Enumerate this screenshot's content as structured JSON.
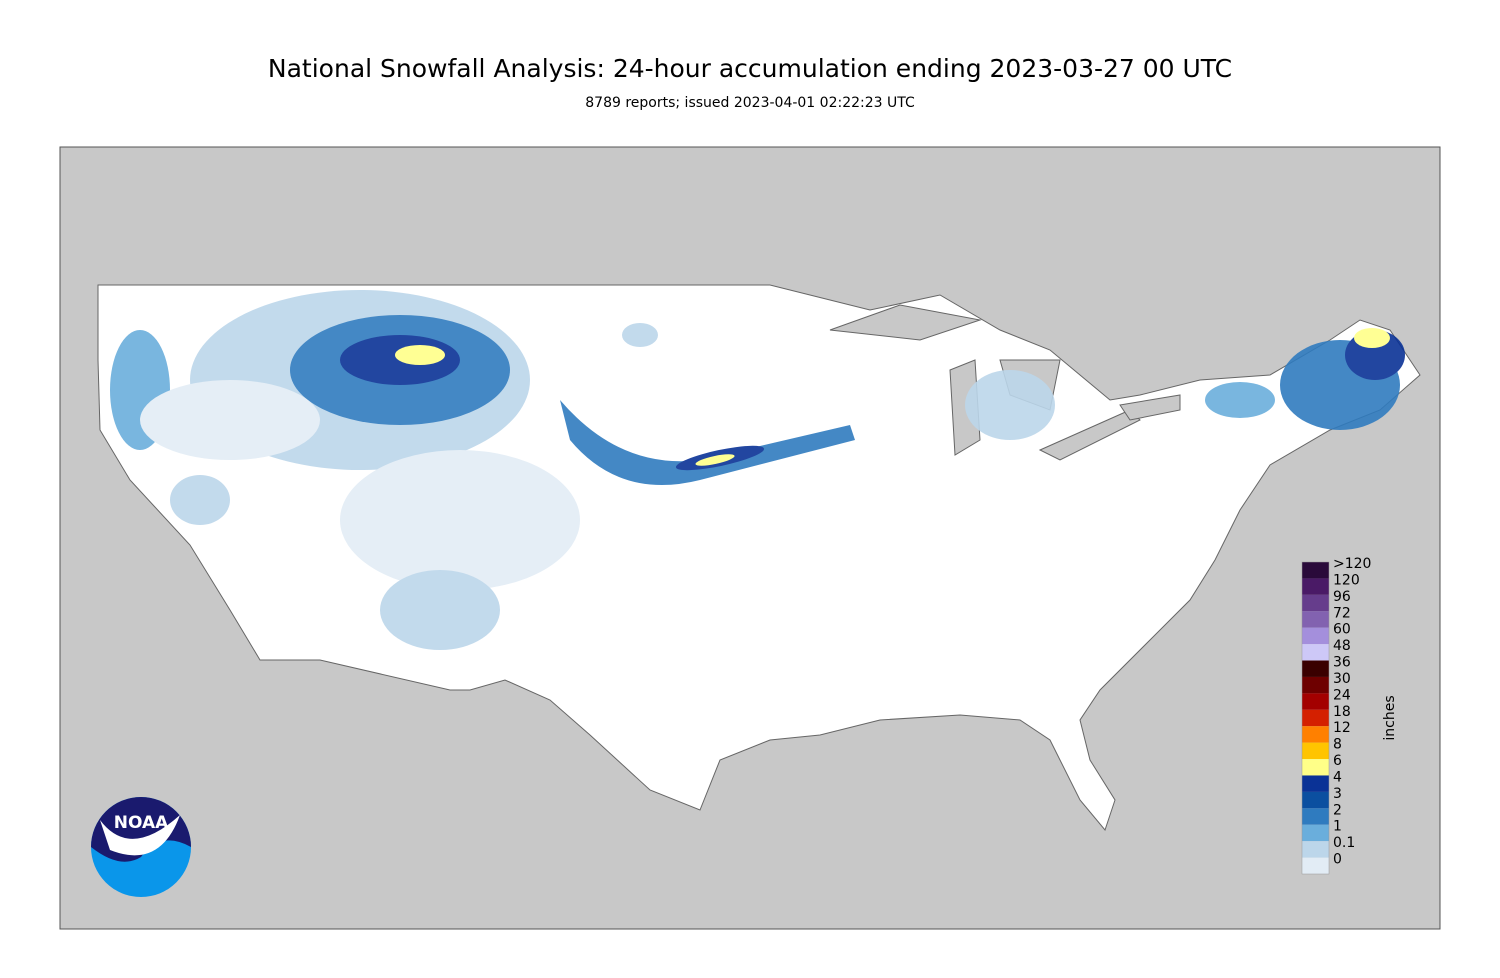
{
  "header": {
    "title": "National Snowfall Analysis: 24-hour accumulation ending 2023-03-27 00 UTC",
    "subtitle": "8789 reports; issued 2023-04-01 02:22:23 UTC"
  },
  "logo": {
    "text": "NOAA"
  },
  "legend": {
    "unit": "inches",
    "levels": [
      {
        "label": ">120",
        "color": "#2a0a3a"
      },
      {
        "label": "120",
        "color": "#4a1a66"
      },
      {
        "label": "96",
        "color": "#663d8c"
      },
      {
        "label": "72",
        "color": "#8262b0"
      },
      {
        "label": "60",
        "color": "#a48fdc"
      },
      {
        "label": "48",
        "color": "#cdc8f7"
      },
      {
        "label": "36",
        "color": "#3a0000"
      },
      {
        "label": "30",
        "color": "#6e0000"
      },
      {
        "label": "24",
        "color": "#a30000"
      },
      {
        "label": "18",
        "color": "#d42000"
      },
      {
        "label": "12",
        "color": "#ff8000"
      },
      {
        "label": "8",
        "color": "#ffc400"
      },
      {
        "label": "6",
        "color": "#ffff88"
      },
      {
        "label": "4",
        "color": "#0a3296"
      },
      {
        "label": "3",
        "color": "#0b4fa0"
      },
      {
        "label": "2",
        "color": "#2f7bbf"
      },
      {
        "label": "1",
        "color": "#6aaedc"
      },
      {
        "label": "0.1",
        "color": "#bcd6ea"
      },
      {
        "label": "0",
        "color": "#e2ecf5"
      }
    ]
  }
}
